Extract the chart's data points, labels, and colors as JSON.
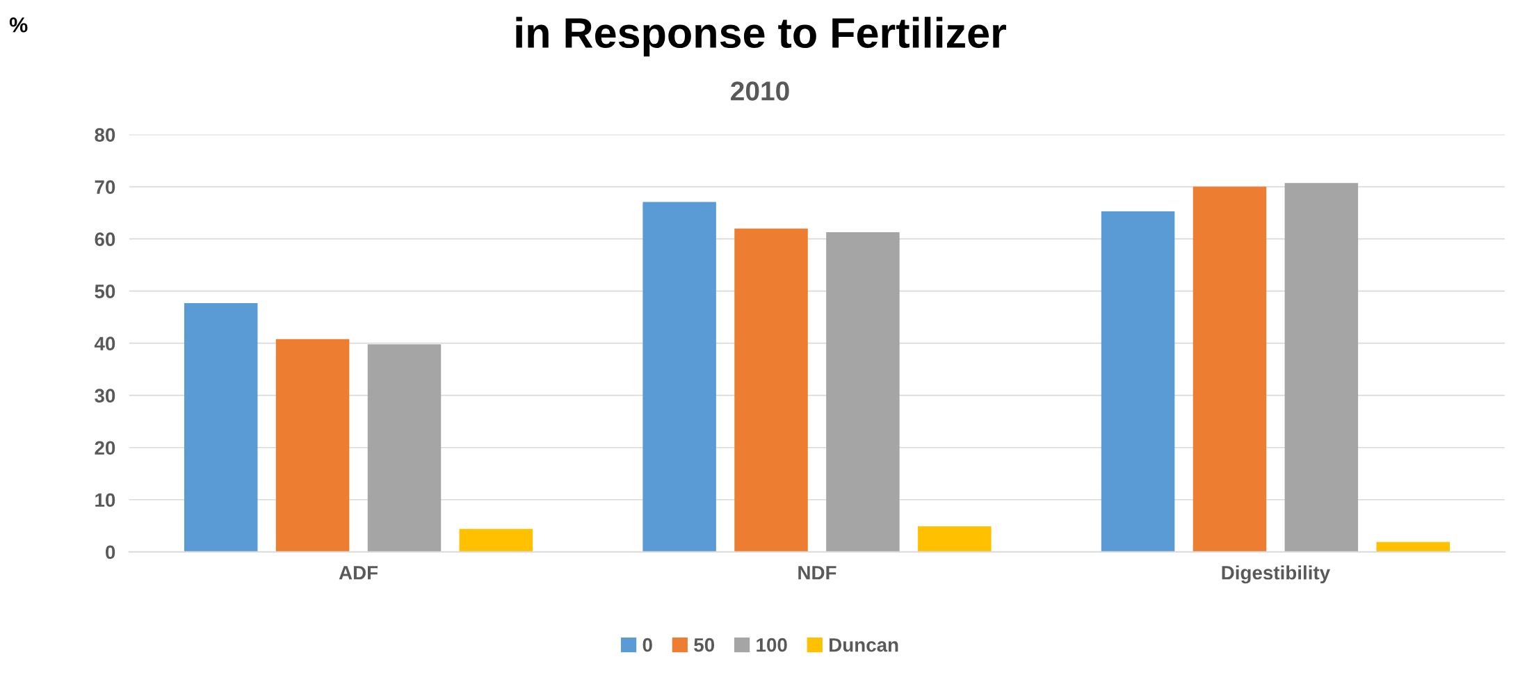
{
  "chart_data": {
    "type": "bar",
    "title": "in Response to Fertilizer",
    "subtitle": "2010",
    "annotations": [
      "%"
    ],
    "categories": [
      "ADF",
      "NDF",
      "Digestibility"
    ],
    "series": [
      {
        "name": "0",
        "color": "#5b9bd5",
        "values": [
          47.7,
          67.1,
          65.3
        ]
      },
      {
        "name": "50",
        "color": "#ed7d31",
        "values": [
          40.8,
          62.0,
          70.0
        ]
      },
      {
        "name": "100",
        "color": "#a5a5a5",
        "values": [
          39.8,
          61.3,
          70.7
        ]
      },
      {
        "name": "Duncan",
        "color": "#ffc000",
        "values": [
          4.4,
          4.9,
          1.9
        ]
      }
    ],
    "ylim": [
      0,
      80
    ],
    "yticks": [
      0,
      10,
      20,
      30,
      40,
      50,
      60,
      70,
      80
    ],
    "grid": "y",
    "legend": "bottom"
  }
}
